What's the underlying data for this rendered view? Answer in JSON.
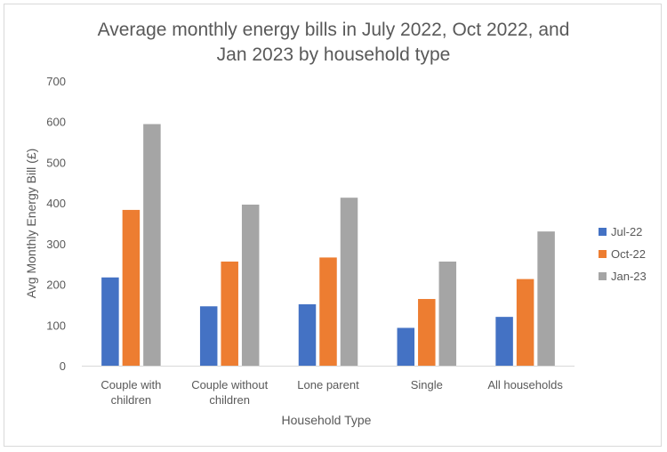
{
  "chart_data": {
    "type": "bar",
    "title_lines": [
      "Average monthly energy bills in July 2022, Oct 2022, and",
      "Jan 2023 by household type"
    ],
    "xlabel": "Household Type",
    "ylabel": "Avg Monthly Energy Bill  (£)",
    "ylim": [
      0,
      700
    ],
    "yticks": [
      "0",
      "100",
      "200",
      "300",
      "400",
      "500",
      "600",
      "700"
    ],
    "categories": [
      [
        "Couple with",
        "children"
      ],
      [
        "Couple without",
        "children"
      ],
      [
        "Lone parent"
      ],
      [
        "Single"
      ],
      [
        "All households"
      ]
    ],
    "series": [
      {
        "name": "Jul-22",
        "color": "#4472c4",
        "values": [
          217,
          146,
          151,
          93,
          120
        ]
      },
      {
        "name": "Oct-22",
        "color": "#ed7d31",
        "values": [
          383,
          256,
          266,
          164,
          213
        ]
      },
      {
        "name": "Jan-23",
        "color": "#a5a5a5",
        "values": [
          594,
          396,
          413,
          256,
          330
        ]
      }
    ],
    "grid": false,
    "legend_position": "right"
  }
}
